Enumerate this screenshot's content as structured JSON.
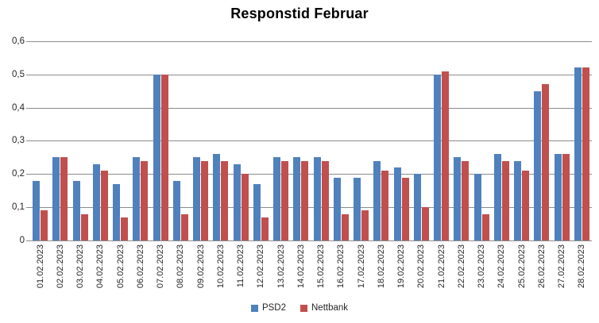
{
  "chart_data": {
    "type": "bar",
    "title": "Responstid Februar",
    "categories": [
      "01.02.2023",
      "02.02.2023",
      "03.02.2023",
      "04.02.2023",
      "05.02.2023",
      "06.02.2023",
      "07.02.2023",
      "08.02.2023",
      "09.02.2023",
      "10.02.2023",
      "11.02.2023",
      "12.02.2023",
      "13.02.2023",
      "14.02.2023",
      "15.02.2023",
      "16.02.2023",
      "17.02.2023",
      "18.02.2023",
      "19.02.2023",
      "20.02.2023",
      "21.02.2023",
      "22.02.2023",
      "23.02.2023",
      "24.02.2023",
      "25.02.2023",
      "26.02.2023",
      "27.02.2023",
      "28.02.2023"
    ],
    "series": [
      {
        "name": "PSD2",
        "color": "#4F81BD",
        "values": [
          0.18,
          0.25,
          0.18,
          0.23,
          0.17,
          0.25,
          0.5,
          0.18,
          0.25,
          0.26,
          0.23,
          0.17,
          0.25,
          0.25,
          0.25,
          0.19,
          0.19,
          0.24,
          0.22,
          0.2,
          0.5,
          0.25,
          0.2,
          0.26,
          0.24,
          0.45,
          0.26,
          0.52
        ]
      },
      {
        "name": "Nettbank",
        "color": "#C0504D",
        "values": [
          0.09,
          0.25,
          0.08,
          0.21,
          0.07,
          0.24,
          0.5,
          0.08,
          0.24,
          0.24,
          0.2,
          0.07,
          0.24,
          0.24,
          0.24,
          0.08,
          0.09,
          0.21,
          0.19,
          0.1,
          0.51,
          0.24,
          0.08,
          0.24,
          0.21,
          0.47,
          0.26,
          0.52
        ]
      }
    ],
    "xlabel": "",
    "ylabel": "",
    "ylim": [
      0,
      0.6
    ],
    "ytick_step": 0.1,
    "ytick_labels": [
      "0",
      "0,1",
      "0,2",
      "0,3",
      "0,4",
      "0,5",
      "0,6"
    ],
    "grid": true,
    "legend_position": "bottom",
    "grid_color": "#8c8c8c",
    "text_color": "#262626",
    "decimal_separator": ","
  }
}
